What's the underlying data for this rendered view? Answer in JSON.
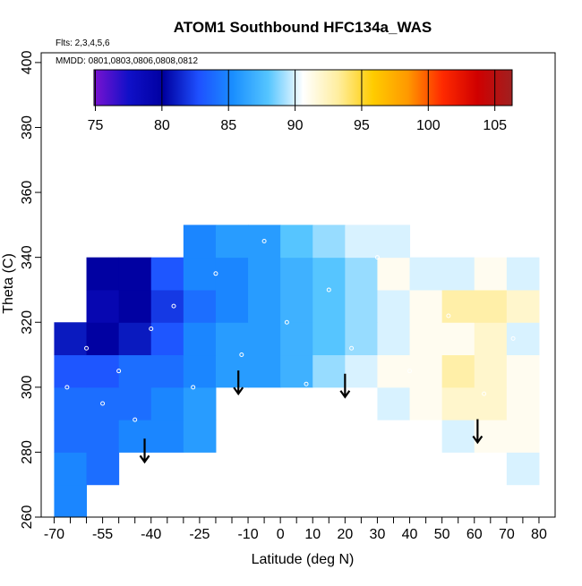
{
  "chart_data": {
    "type": "heatmap",
    "title": "ATOM1 Southbound HFC134a_WAS",
    "subtitle": "Flts: 2,3,4,5,6",
    "annotation": "MMDD: 0801,0803,0806,0808,0812",
    "xlabel": "Latitude (deg N)",
    "ylabel": "Theta (C)",
    "xlim": [
      -74,
      85
    ],
    "ylim": [
      260,
      403
    ],
    "xticks": [
      -70,
      -55,
      -40,
      -25,
      -10,
      0,
      10,
      20,
      30,
      40,
      50,
      60,
      70,
      80
    ],
    "xminor": [
      -65,
      -60,
      -50,
      -45,
      -35,
      -30,
      -20,
      -15,
      -5,
      5,
      15,
      25,
      35,
      45,
      55,
      65,
      75
    ],
    "yticks": [
      260,
      280,
      300,
      320,
      340,
      360,
      380,
      400
    ],
    "x_edges": [
      -70,
      -60,
      -50,
      -40,
      -30,
      -20,
      -10,
      0,
      10,
      20,
      30,
      40,
      50,
      60,
      70,
      80
    ],
    "y_edges": [
      260,
      270,
      280,
      290,
      300,
      310,
      320,
      330,
      340,
      350
    ],
    "z": [
      [
        85,
        null,
        null,
        null,
        null,
        null,
        null,
        null,
        null,
        null,
        null,
        null,
        null,
        null,
        null
      ],
      [
        85,
        84,
        null,
        null,
        null,
        null,
        null,
        null,
        null,
        null,
        null,
        null,
        null,
        null,
        90
      ],
      [
        84,
        84,
        85,
        85,
        86,
        null,
        null,
        null,
        null,
        null,
        null,
        null,
        90,
        91,
        91
      ],
      [
        84,
        84,
        84,
        85,
        86,
        null,
        null,
        null,
        null,
        null,
        90,
        91,
        92,
        92,
        91
      ],
      [
        83,
        83,
        84,
        84,
        85,
        86,
        86,
        87,
        89,
        90,
        91,
        91,
        93,
        92,
        91
      ],
      [
        81,
        80,
        81,
        83,
        85,
        86,
        86,
        87,
        88,
        89,
        90,
        91,
        91,
        92,
        90
      ],
      [
        null,
        79,
        80,
        82,
        84,
        85,
        86,
        87,
        88,
        89,
        90,
        91,
        93,
        93,
        92
      ],
      [
        null,
        80,
        80,
        83,
        85,
        85,
        86,
        87,
        88,
        89,
        91,
        90,
        90,
        91,
        90
      ],
      [
        null,
        null,
        null,
        null,
        85,
        86,
        86,
        88,
        89,
        90,
        90,
        null,
        null,
        null,
        null
      ]
    ],
    "colorbar": {
      "lim": [
        74.9,
        106.3
      ],
      "ticks": [
        75,
        80,
        85,
        90,
        95,
        100,
        105
      ],
      "colors": [
        "#7b12d0",
        "#1010c8",
        "#0000a0",
        "#1e50ff",
        "#1a8fff",
        "#55c5ff",
        "#ffffff",
        "#ffeea0",
        "#ffcc00",
        "#ff9900",
        "#ff2a00",
        "#d00000",
        "#a02020"
      ]
    },
    "points": {
      "x": [
        -66,
        -60,
        -55,
        -50,
        -45,
        -40,
        -33,
        -27,
        -20,
        -12,
        -5,
        2,
        8,
        15,
        22,
        30,
        40,
        52,
        63,
        72
      ],
      "y": [
        300,
        312,
        295,
        305,
        290,
        318,
        325,
        300,
        335,
        310,
        345,
        320,
        301,
        330,
        312,
        340,
        305,
        322,
        298,
        315
      ]
    },
    "arrows": {
      "x": [
        -42,
        -13,
        20,
        61
      ],
      "y": [
        277,
        298,
        297,
        283
      ]
    }
  }
}
